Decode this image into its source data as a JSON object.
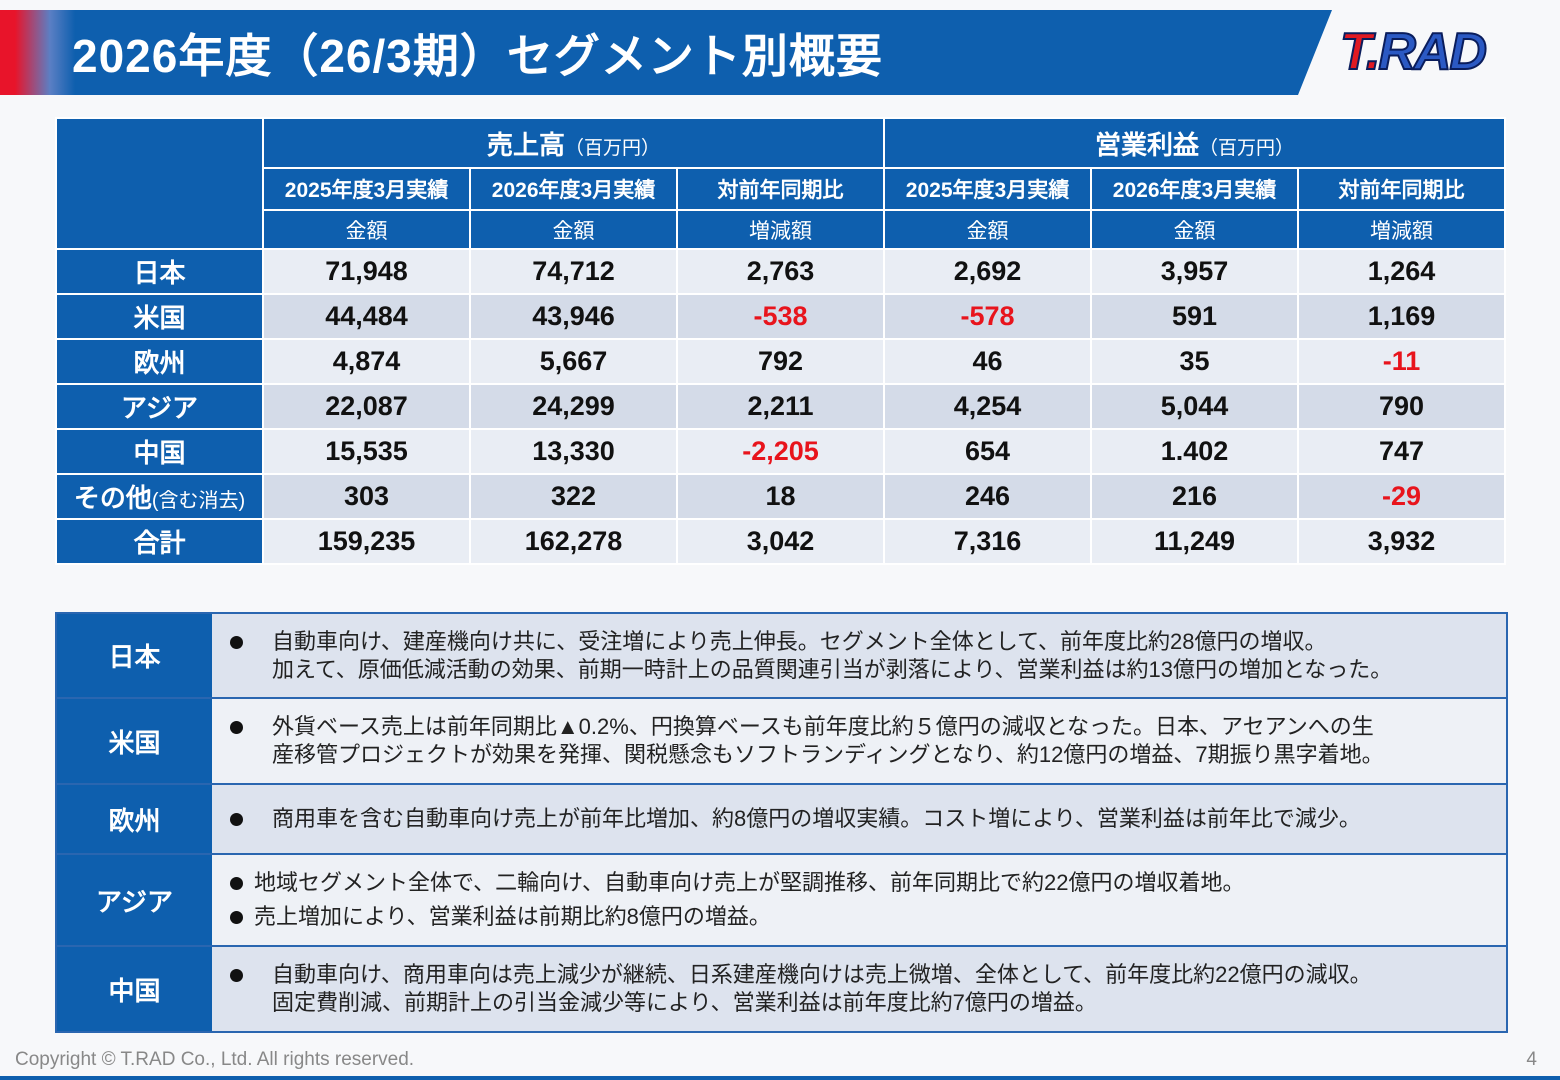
{
  "header": {
    "title": "2026年度（26/3期）セグメント別概要",
    "logo": "T.RAD"
  },
  "table": {
    "groups": [
      {
        "name": "売上高",
        "unit": "（百万円）",
        "columns": [
          {
            "period": "2025年度3月実績",
            "measure": "金額"
          },
          {
            "period": "2026年度3月実績",
            "measure": "金額"
          },
          {
            "period": "対前年同期比",
            "measure": "増減額"
          }
        ]
      },
      {
        "name": "営業利益",
        "unit": "（百万円）",
        "columns": [
          {
            "period": "2025年度3月実績",
            "measure": "金額"
          },
          {
            "period": "2026年度3月実績",
            "measure": "金額"
          },
          {
            "period": "対前年同期比",
            "measure": "増減額"
          }
        ]
      }
    ],
    "rows": [
      {
        "label": "日本",
        "values": [
          "71,948",
          "74,712",
          "2,763",
          "2,692",
          "3,957",
          "1,264"
        ]
      },
      {
        "label": "米国",
        "values": [
          "44,484",
          "43,946",
          "-538",
          "-578",
          "591",
          "1,169"
        ]
      },
      {
        "label": "欧州",
        "values": [
          "4,874",
          "5,667",
          "792",
          "46",
          "35",
          "-11"
        ]
      },
      {
        "label": "アジア",
        "values": [
          "22,087",
          "24,299",
          "2,211",
          "4,254",
          "5,044",
          "790"
        ]
      },
      {
        "label": "中国",
        "values": [
          "15,535",
          "13,330",
          "-2,205",
          "654",
          "1.402",
          "747"
        ]
      },
      {
        "label": "その他",
        "note": "(含む消去)",
        "values": [
          "303",
          "322",
          "18",
          "246",
          "216",
          "-29"
        ]
      },
      {
        "label": "合計",
        "values": [
          "159,235",
          "162,278",
          "3,042",
          "7,316",
          "11,249",
          "3,932"
        ]
      }
    ]
  },
  "notes": [
    {
      "region": "日本",
      "bullets": [
        {
          "lines": [
            "自動車向け、建産機向け共に、受注増により売上伸長。セグメント全体として、前年度比約28億円の増収。",
            "加えて、原価低減活動の効果、前期一時計上の品質関連引当が剥落により、営業利益は約13億円の増加となった。"
          ]
        }
      ]
    },
    {
      "region": "米国",
      "bullets": [
        {
          "lines": [
            "外貨ベース売上は前年同期比▲0.2%、円換算ベースも前年度比約５億円の減収となった。日本、アセアンへの生",
            "産移管プロジェクトが効果を発揮、関税懸念もソフトランディングとなり、約12億円の増益、7期振り黒字着地。"
          ]
        }
      ]
    },
    {
      "region": "欧州",
      "bullets": [
        {
          "lines": [
            "商用車を含む自動車向け売上が前年比増加、約8億円の増収実績。コスト増により、営業利益は前年比で減少。"
          ]
        }
      ]
    },
    {
      "region": "アジア",
      "bullets": [
        {
          "lines": [
            "地域セグメント全体で、二輪向け、自動車向け売上が堅調推移、前年同期比で約22億円の増収着地。"
          ]
        },
        {
          "lines": [
            "売上増加により、営業利益は前期比約8億円の増益。"
          ]
        }
      ]
    },
    {
      "region": "中国",
      "bullets": [
        {
          "lines": [
            "自動車向け、商用車向は売上減少が継続、日系建産機向けは売上微増、全体として、前年度比約22億円の減収。",
            "固定費削減、前期計上の引当金減少等により、営業利益は前年度比約7億円の増益。"
          ]
        }
      ]
    }
  ],
  "footer": {
    "copyright": "Copyright © T.RAD Co., Ltd. All rights reserved.",
    "page": "4"
  }
}
